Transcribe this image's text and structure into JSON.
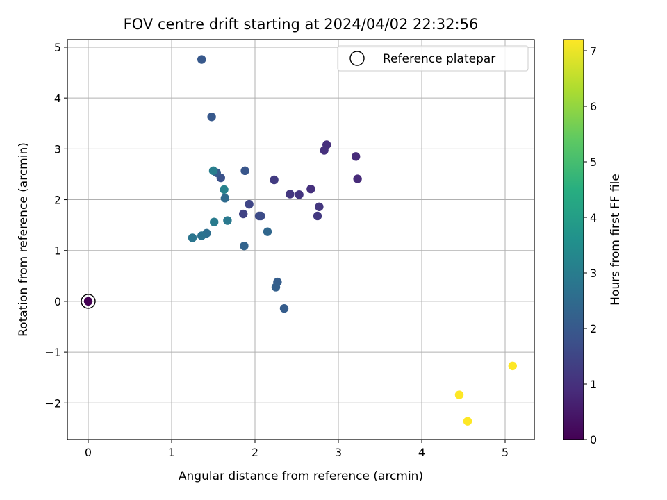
{
  "chart_data": {
    "type": "scatter",
    "title": "FOV centre drift starting at 2024/04/02 22:32:56",
    "xlabel": "Angular distance from reference (arcmin)",
    "ylabel": "Rotation from reference (arcmin)",
    "xlim": [
      -0.25,
      5.35
    ],
    "ylim": [
      -2.72,
      5.15
    ],
    "xticks": [
      0,
      1,
      2,
      3,
      4,
      5
    ],
    "yticks": [
      -2,
      -1,
      0,
      1,
      2,
      3,
      4,
      5
    ],
    "xtick_labels": [
      "0",
      "1",
      "2",
      "3",
      "4",
      "5"
    ],
    "ytick_labels": [
      "−2",
      "−1",
      "0",
      "1",
      "2",
      "3",
      "4",
      "5"
    ],
    "grid": true,
    "legend": {
      "location": "top-right",
      "label": "Reference platepar",
      "marker": "hollow-circle"
    },
    "colorbar": {
      "label": "Hours from first FF file",
      "colormap": "viridis",
      "range": [
        0,
        7.2
      ],
      "ticks": [
        0,
        1,
        2,
        3,
        4,
        5,
        6,
        7
      ],
      "tick_labels": [
        "0",
        "1",
        "2",
        "3",
        "4",
        "5",
        "6",
        "7"
      ]
    },
    "reference_point": {
      "x": 0,
      "y": 0,
      "hours": 0
    },
    "points": [
      {
        "x": 0.0,
        "y": 0.0,
        "hours": 0.0
      },
      {
        "x": 3.21,
        "y": 2.85,
        "hours": 0.85
      },
      {
        "x": 3.23,
        "y": 2.41,
        "hours": 0.85
      },
      {
        "x": 2.86,
        "y": 3.08,
        "hours": 0.95
      },
      {
        "x": 2.83,
        "y": 2.97,
        "hours": 1.0
      },
      {
        "x": 2.67,
        "y": 2.21,
        "hours": 1.0
      },
      {
        "x": 2.53,
        "y": 2.1,
        "hours": 1.1
      },
      {
        "x": 2.42,
        "y": 2.11,
        "hours": 1.15
      },
      {
        "x": 2.77,
        "y": 1.86,
        "hours": 1.15
      },
      {
        "x": 2.75,
        "y": 1.68,
        "hours": 1.2
      },
      {
        "x": 2.23,
        "y": 2.39,
        "hours": 1.25
      },
      {
        "x": 1.86,
        "y": 1.72,
        "hours": 1.4
      },
      {
        "x": 1.93,
        "y": 1.91,
        "hours": 1.5
      },
      {
        "x": 2.05,
        "y": 1.68,
        "hours": 1.6
      },
      {
        "x": 2.07,
        "y": 1.68,
        "hours": 1.65
      },
      {
        "x": 1.59,
        "y": 2.43,
        "hours": 1.8
      },
      {
        "x": 1.88,
        "y": 2.57,
        "hours": 1.9
      },
      {
        "x": 1.36,
        "y": 4.76,
        "hours": 2.0
      },
      {
        "x": 1.48,
        "y": 3.63,
        "hours": 2.0
      },
      {
        "x": 1.54,
        "y": 2.53,
        "hours": 2.05
      },
      {
        "x": 2.35,
        "y": -0.14,
        "hours": 2.1
      },
      {
        "x": 2.27,
        "y": 0.38,
        "hours": 2.15
      },
      {
        "x": 2.25,
        "y": 0.28,
        "hours": 2.2
      },
      {
        "x": 1.87,
        "y": 1.09,
        "hours": 2.3
      },
      {
        "x": 2.15,
        "y": 1.37,
        "hours": 2.4
      },
      {
        "x": 1.64,
        "y": 2.03,
        "hours": 2.5
      },
      {
        "x": 1.42,
        "y": 1.34,
        "hours": 2.6
      },
      {
        "x": 1.36,
        "y": 1.29,
        "hours": 2.7
      },
      {
        "x": 1.25,
        "y": 1.25,
        "hours": 2.8
      },
      {
        "x": 1.67,
        "y": 1.59,
        "hours": 2.9
      },
      {
        "x": 1.51,
        "y": 1.56,
        "hours": 2.95
      },
      {
        "x": 1.5,
        "y": 2.57,
        "hours": 3.05
      },
      {
        "x": 1.63,
        "y": 2.2,
        "hours": 3.15
      },
      {
        "x": 4.45,
        "y": -1.84,
        "hours": 7.2
      },
      {
        "x": 4.55,
        "y": -2.36,
        "hours": 7.2
      },
      {
        "x": 5.09,
        "y": -1.27,
        "hours": 7.2
      }
    ]
  }
}
